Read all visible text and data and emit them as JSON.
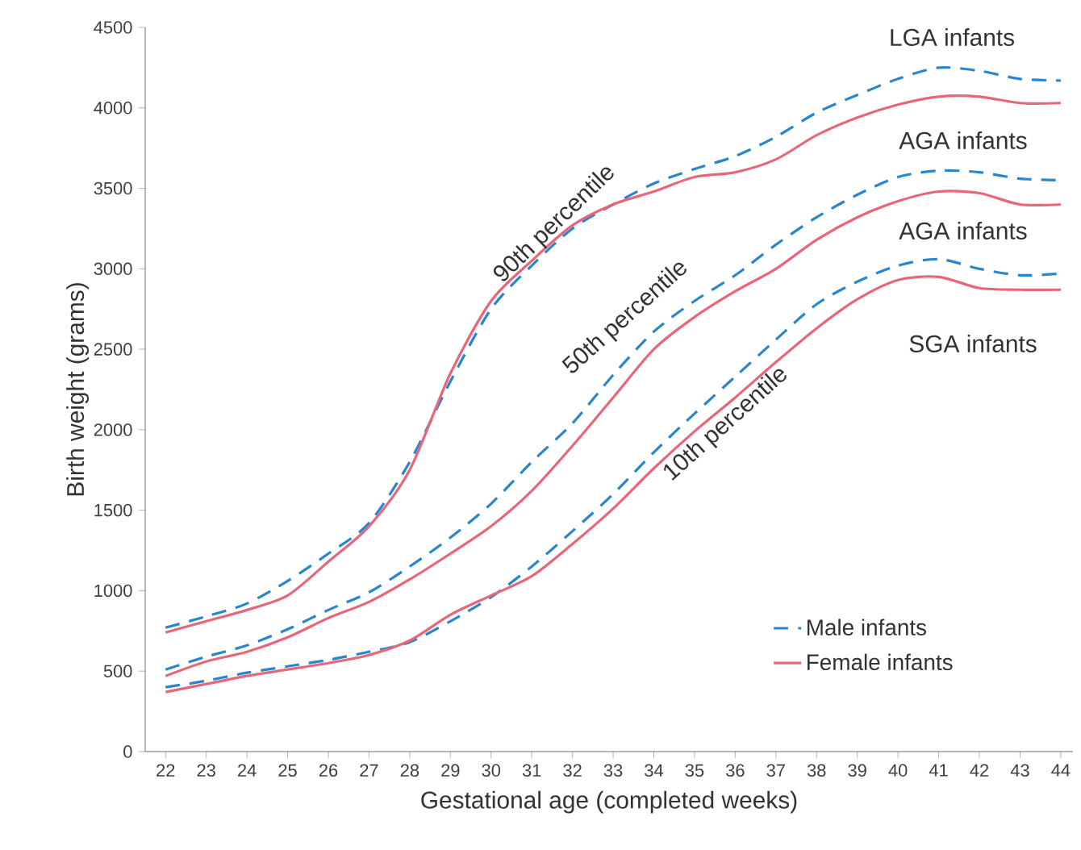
{
  "chart_data": {
    "type": "line",
    "xlabel": "Gestational age (completed weeks)",
    "ylabel": "Birth weight (grams)",
    "x": [
      22,
      23,
      24,
      25,
      26,
      27,
      28,
      29,
      30,
      31,
      32,
      33,
      34,
      35,
      36,
      37,
      38,
      39,
      40,
      41,
      42,
      43,
      44
    ],
    "xlim": [
      21.5,
      44.3
    ],
    "xticks": [
      22,
      23,
      24,
      25,
      26,
      27,
      28,
      29,
      30,
      31,
      32,
      33,
      34,
      35,
      36,
      37,
      38,
      39,
      40,
      41,
      42,
      43,
      44
    ],
    "ylim": [
      0,
      4500
    ],
    "yticks": [
      0,
      500,
      1000,
      1500,
      2000,
      2500,
      3000,
      3500,
      4000,
      4500
    ],
    "grid": false,
    "legend": "bottom right",
    "marker": "none",
    "series": [
      {
        "name": "Male infants",
        "color": "#2a86cc",
        "line_style": "dashed",
        "values": [
          770,
          840,
          920,
          1060,
          1230,
          1420,
          1800,
          2300,
          2750,
          3020,
          3250,
          3400,
          3530,
          3620,
          3700,
          3820,
          3970,
          4080,
          4180,
          4250,
          4230,
          4180,
          4170
        ]
      },
      {
        "color": "#2a86cc",
        "line_style": "dashed",
        "values": [
          510,
          590,
          660,
          760,
          880,
          990,
          1150,
          1330,
          1540,
          1800,
          2040,
          2340,
          2610,
          2800,
          2960,
          3150,
          3320,
          3460,
          3570,
          3610,
          3600,
          3560,
          3550
        ]
      },
      {
        "color": "#2a86cc",
        "line_style": "dashed",
        "values": [
          400,
          440,
          490,
          530,
          570,
          620,
          680,
          810,
          960,
          1150,
          1370,
          1600,
          1860,
          2100,
          2330,
          2560,
          2780,
          2920,
          3020,
          3060,
          3000,
          2960,
          2970
        ]
      },
      {
        "name": "Female infants",
        "color": "#e8667a",
        "line_style": "solid",
        "values": [
          740,
          810,
          880,
          970,
          1180,
          1400,
          1750,
          2350,
          2800,
          3050,
          3270,
          3400,
          3480,
          3570,
          3600,
          3680,
          3830,
          3940,
          4020,
          4070,
          4070,
          4030,
          4030
        ]
      },
      {
        "color": "#e8667a",
        "line_style": "solid",
        "values": [
          470,
          560,
          620,
          710,
          830,
          930,
          1070,
          1230,
          1400,
          1620,
          1900,
          2200,
          2500,
          2700,
          2860,
          3000,
          3180,
          3320,
          3420,
          3480,
          3470,
          3400,
          3400
        ]
      },
      {
        "color": "#e8667a",
        "line_style": "solid",
        "values": [
          370,
          420,
          470,
          510,
          550,
          600,
          690,
          850,
          970,
          1090,
          1290,
          1510,
          1760,
          1990,
          2200,
          2420,
          2630,
          2810,
          2930,
          2950,
          2880,
          2870,
          2870
        ]
      }
    ],
    "annotations": [
      "90th percentile",
      "50th percentile",
      "10th percentile",
      "LGA infants",
      "AGA infants",
      "AGA infants",
      "SGA infants"
    ]
  }
}
